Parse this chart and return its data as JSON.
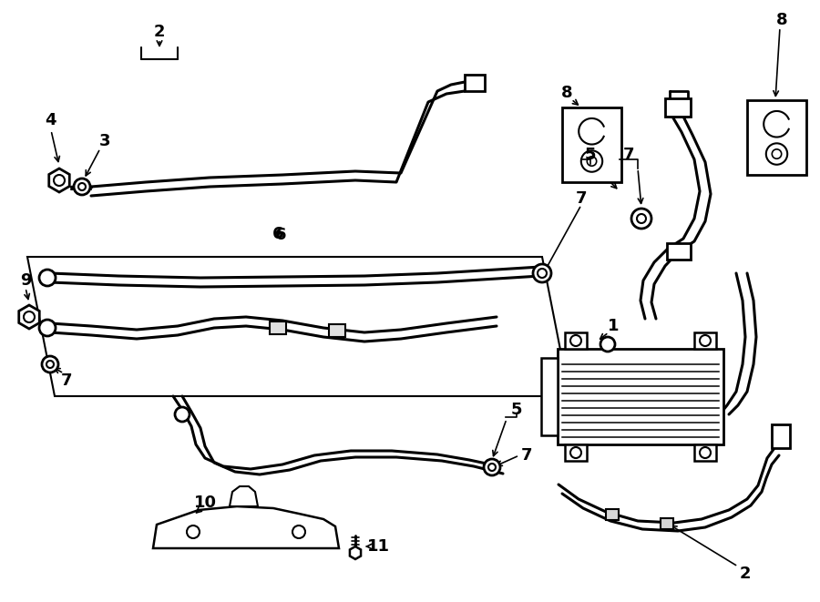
{
  "background": "#ffffff",
  "line_color": "#000000",
  "line_width": 2.0
}
